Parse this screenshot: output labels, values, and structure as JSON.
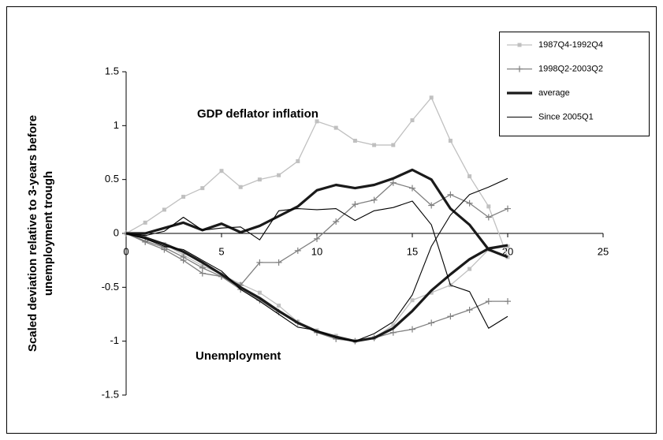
{
  "chart_data": {
    "type": "line",
    "y_label": [
      "Scaled deviation relative to 3-years before",
      "unemployment trough"
    ],
    "annotations": [
      "GDP deflator inflation",
      "Unemployment"
    ],
    "x": [
      0,
      1,
      2,
      3,
      4,
      5,
      6,
      7,
      8,
      9,
      10,
      11,
      12,
      13,
      14,
      15,
      16,
      17,
      18,
      19,
      20
    ],
    "xlim": [
      0,
      25
    ],
    "xticks": [
      0,
      5,
      10,
      15,
      20,
      25
    ],
    "ylim": [
      -1.5,
      1.5
    ],
    "yticks": [
      -1.5,
      -1,
      -0.5,
      0,
      0.5,
      1,
      1.5
    ],
    "legend": "top-right",
    "series": [
      {
        "name": "1987Q4-1992Q4",
        "color": "#c0c0c0",
        "width": 1.3,
        "marker": "square",
        "values": [
          0,
          0.1,
          0.22,
          0.34,
          0.42,
          0.58,
          0.43,
          0.5,
          0.54,
          0.67,
          1.04,
          0.98,
          0.86,
          0.82,
          0.82,
          1.05,
          1.26,
          0.86,
          0.53,
          0.25,
          -0.22
        ],
        "unemployment": [
          0,
          -0.03,
          -0.1,
          -0.2,
          -0.3,
          -0.38,
          -0.47,
          -0.55,
          -0.67,
          -0.82,
          -0.9,
          -0.95,
          -1,
          -0.97,
          -0.85,
          -0.62,
          -0.55,
          -0.48,
          -0.33,
          -0.15,
          -0.12
        ]
      },
      {
        "name": "1998Q2-2003Q2",
        "color": "#808080",
        "width": 1.3,
        "marker": "plus",
        "values": [
          0,
          -0.07,
          -0.13,
          -0.22,
          -0.32,
          -0.4,
          -0.48,
          -0.27,
          -0.27,
          -0.16,
          -0.05,
          0.11,
          0.27,
          0.31,
          0.47,
          0.42,
          0.26,
          0.36,
          0.28,
          0.15,
          0.23
        ],
        "unemployment": [
          0,
          -0.08,
          -0.15,
          -0.25,
          -0.37,
          -0.4,
          -0.52,
          -0.62,
          -0.73,
          -0.83,
          -0.92,
          -0.98,
          -1,
          -0.97,
          -0.92,
          -0.89,
          -0.83,
          -0.77,
          -0.71,
          -0.63,
          -0.63
        ]
      },
      {
        "name": "average",
        "color": "#1a1a1a",
        "width": 3.2,
        "marker": null,
        "values": [
          0,
          0,
          0.05,
          0.1,
          0.03,
          0.09,
          0.01,
          0.07,
          0.16,
          0.25,
          0.4,
          0.45,
          0.42,
          0.45,
          0.51,
          0.59,
          0.5,
          0.23,
          0.08,
          -0.15,
          -0.22
        ],
        "unemployment": [
          0,
          -0.04,
          -0.1,
          -0.17,
          -0.27,
          -0.38,
          -0.5,
          -0.6,
          -0.72,
          -0.83,
          -0.91,
          -0.96,
          -1,
          -0.97,
          -0.88,
          -0.72,
          -0.53,
          -0.38,
          -0.24,
          -0.14,
          -0.11
        ]
      },
      {
        "name": "Since 2005Q1",
        "color": "#000000",
        "width": 1.1,
        "marker": null,
        "values": [
          0,
          -0.02,
          0.02,
          0.15,
          0.03,
          0.05,
          0.06,
          -0.06,
          0.21,
          0.23,
          0.22,
          0.23,
          0.12,
          0.21,
          0.24,
          0.3,
          0.08,
          -0.48,
          -0.54,
          -0.88,
          -0.77
        ],
        "unemployment": [
          0,
          -0.05,
          -0.12,
          -0.15,
          -0.25,
          -0.35,
          -0.52,
          -0.63,
          -0.75,
          -0.87,
          -0.9,
          -0.97,
          -1,
          -0.93,
          -0.82,
          -0.57,
          -0.12,
          0.17,
          0.36,
          0.43,
          0.51
        ]
      }
    ]
  }
}
